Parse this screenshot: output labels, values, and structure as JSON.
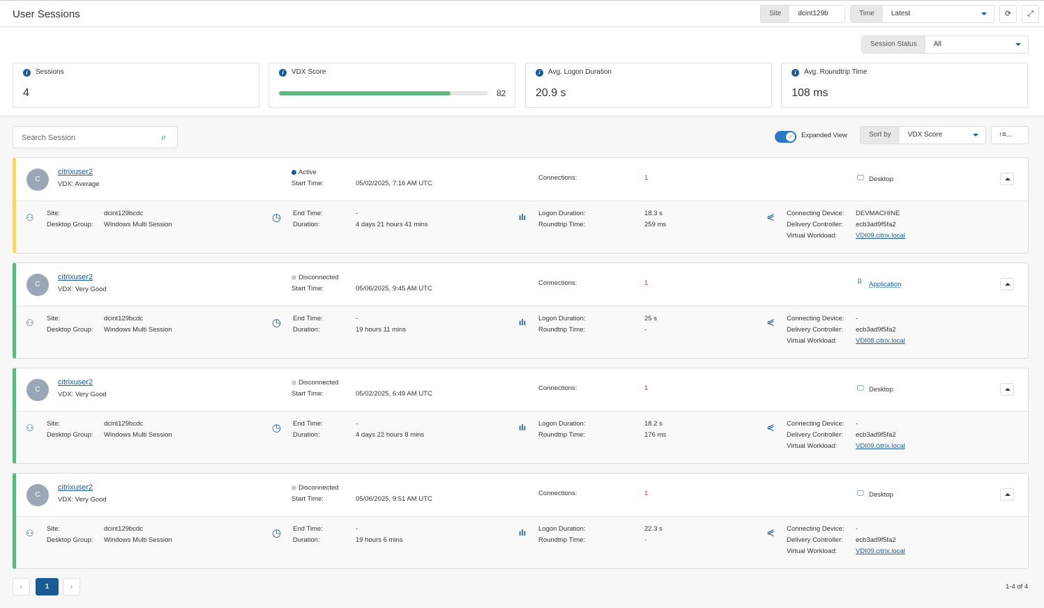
{
  "header": {
    "title": "User Sessions",
    "site_label": "Site",
    "site_value": "dcint129b",
    "time_label": "Time",
    "time_value": "Latest",
    "session_status_label": "Session Status",
    "session_status_value": "All"
  },
  "kpis": [
    {
      "label": "Sessions",
      "value": "4"
    },
    {
      "label": "VDX Score",
      "value": "82",
      "progress": 0.82
    },
    {
      "label": "Avg. Logon Duration",
      "value": "20.9 s"
    },
    {
      "label": "Avg. Roundtrip Time",
      "value": "108 ms"
    }
  ],
  "toolbar": {
    "search_placeholder": "Search Session",
    "expanded_view": "Expanded View",
    "expanded_on": true,
    "sort_label": "Sort by",
    "sort_value": "VDX Score",
    "order_label": "↑≡..."
  },
  "labels": {
    "start": "Start Time:",
    "connections": "Connections:",
    "site": "Site:",
    "group": "Desktop Group:",
    "end": "End Time:",
    "duration": "Duration:",
    "logon": "Logon Duration:",
    "rtt": "Roundtrip Time:",
    "device": "Connecting Device:",
    "controller": "Delivery Controller:",
    "workload": "Virtual Workload:"
  },
  "colors": {
    "average": "#f5d76e",
    "very_good": "#5cb87f",
    "active": "#1a5a96",
    "disconnected": "#cccccc"
  },
  "sessions": [
    {
      "initial": "C",
      "user": "citrixuser2",
      "vdx": "VDX: Average",
      "status": "Active",
      "start": "05/02/2025, 7:16 AM UTC",
      "connections": "1",
      "type": "Desktop",
      "site": "dcint129bcdc",
      "group": "Windows Multi Session",
      "end": "-",
      "duration": "4 days 21 hours 41 mins",
      "logon": "18.3 s",
      "rtt": "259 ms",
      "device": "DEVMACHINE",
      "controller": "ecb3ad9f5fa2",
      "workload": "VDI09.citrix.local"
    },
    {
      "initial": "C",
      "user": "citrixuser2",
      "vdx": "VDX: Very Good",
      "status": "Disconnected",
      "start": "05/06/2025, 9:45 AM UTC",
      "connections": "1",
      "type": "Application",
      "site": "dcint129bcdc",
      "group": "Windows Multi Session",
      "end": "-",
      "duration": "19 hours 11 mins",
      "logon": "25 s",
      "rtt": "-",
      "device": "-",
      "controller": "ecb3ad9f5fa2",
      "workload": "VDI08.citrix.local"
    },
    {
      "initial": "C",
      "user": "citrixuser2",
      "vdx": "VDX: Very Good",
      "status": "Disconnected",
      "start": "05/02/2025, 6:49 AM UTC",
      "connections": "1",
      "type": "Desktop",
      "site": "dcint129bcdc",
      "group": "Windows Multi Session",
      "end": "-",
      "duration": "4 days 22 hours 8 mins",
      "logon": "18.2 s",
      "rtt": "176 ms",
      "device": "-",
      "controller": "ecb3ad9f5fa2",
      "workload": "VDI09.citrix.local"
    },
    {
      "initial": "C",
      "user": "citrixuser2",
      "vdx": "VDX: Very Good",
      "status": "Disconnected",
      "start": "05/06/2025, 9:51 AM UTC",
      "connections": "1",
      "type": "Desktop",
      "site": "dcint129bcdc",
      "group": "Windows Multi Session",
      "end": "-",
      "duration": "19 hours 6 mins",
      "logon": "22.3 s",
      "rtt": "-",
      "device": "-",
      "controller": "ecb3ad9f5fa2",
      "workload": "VDI09.citrix.local"
    }
  ],
  "pagination": {
    "prev": "‹",
    "current": "1",
    "next": "›",
    "summary": "1-4 of 4"
  }
}
